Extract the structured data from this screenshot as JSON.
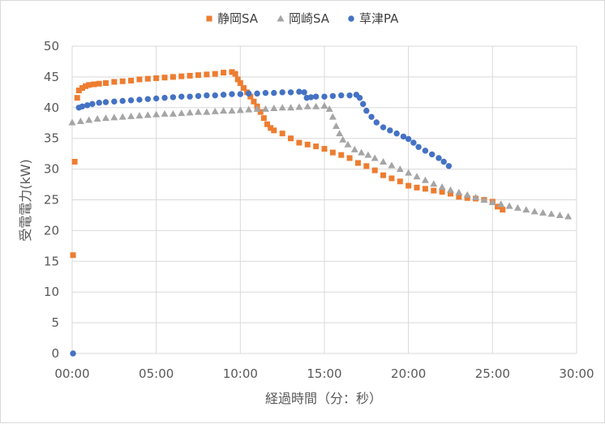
{
  "chart_data": {
    "type": "scatter",
    "title": "",
    "xlabel": "経過時間（分：秒）",
    "ylabel": "受電電力(kW)",
    "x_unit": "minutes",
    "xlim": [
      0,
      30
    ],
    "ylim": [
      0,
      50
    ],
    "x_ticks": [
      0,
      5,
      10,
      15,
      20,
      25,
      30
    ],
    "x_tick_labels": [
      "00:00",
      "05:00",
      "10:00",
      "15:00",
      "20:00",
      "25:00",
      "30:00"
    ],
    "y_ticks": [
      0,
      5,
      10,
      15,
      20,
      25,
      30,
      35,
      40,
      45,
      50
    ],
    "y_tick_labels": [
      "0",
      "5",
      "10",
      "15",
      "20",
      "25",
      "30",
      "35",
      "40",
      "45",
      "50"
    ],
    "grid": true,
    "legend_position": "top",
    "series": [
      {
        "name": "静岡SA",
        "marker": "square",
        "color": "#ED7D31",
        "points": [
          [
            0.05,
            16.0
          ],
          [
            0.15,
            31.2
          ],
          [
            0.3,
            41.6
          ],
          [
            0.4,
            42.8
          ],
          [
            0.6,
            43.2
          ],
          [
            0.8,
            43.5
          ],
          [
            1.0,
            43.7
          ],
          [
            1.3,
            43.8
          ],
          [
            1.6,
            43.9
          ],
          [
            2.0,
            44.0
          ],
          [
            2.5,
            44.2
          ],
          [
            3.0,
            44.3
          ],
          [
            3.5,
            44.4
          ],
          [
            4.0,
            44.6
          ],
          [
            4.5,
            44.7
          ],
          [
            5.0,
            44.8
          ],
          [
            5.5,
            44.9
          ],
          [
            6.0,
            45.0
          ],
          [
            6.5,
            45.1
          ],
          [
            7.0,
            45.2
          ],
          [
            7.5,
            45.3
          ],
          [
            8.0,
            45.4
          ],
          [
            8.5,
            45.5
          ],
          [
            9.0,
            45.7
          ],
          [
            9.5,
            45.8
          ],
          [
            9.7,
            45.5
          ],
          [
            9.85,
            44.6
          ],
          [
            10.0,
            44.0
          ],
          [
            10.2,
            43.2
          ],
          [
            10.4,
            42.5
          ],
          [
            10.6,
            41.8
          ],
          [
            10.8,
            41.0
          ],
          [
            11.0,
            40.2
          ],
          [
            11.2,
            39.3
          ],
          [
            11.4,
            38.3
          ],
          [
            11.6,
            37.3
          ],
          [
            11.8,
            36.7
          ],
          [
            12.0,
            36.3
          ],
          [
            12.5,
            35.8
          ],
          [
            13.0,
            35.0
          ],
          [
            13.5,
            34.3
          ],
          [
            14.0,
            34.0
          ],
          [
            14.5,
            33.7
          ],
          [
            15.0,
            33.3
          ],
          [
            15.5,
            32.7
          ],
          [
            16.0,
            32.3
          ],
          [
            16.5,
            31.8
          ],
          [
            17.0,
            31.0
          ],
          [
            17.5,
            30.5
          ],
          [
            18.0,
            29.8
          ],
          [
            18.5,
            29.0
          ],
          [
            19.0,
            28.5
          ],
          [
            19.5,
            28.0
          ],
          [
            20.0,
            27.3
          ],
          [
            20.5,
            27.0
          ],
          [
            21.0,
            26.8
          ],
          [
            21.5,
            26.5
          ],
          [
            22.0,
            26.3
          ],
          [
            22.5,
            26.0
          ],
          [
            23.0,
            25.5
          ],
          [
            23.5,
            25.3
          ],
          [
            24.0,
            25.2
          ],
          [
            24.5,
            25.0
          ],
          [
            25.0,
            24.7
          ],
          [
            25.3,
            23.9
          ],
          [
            25.6,
            23.4
          ]
        ]
      },
      {
        "name": "岡崎SA",
        "marker": "triangle",
        "color": "#A5A5A5",
        "points": [
          [
            0.0,
            37.6
          ],
          [
            0.5,
            37.8
          ],
          [
            1.0,
            38.0
          ],
          [
            1.5,
            38.2
          ],
          [
            2.0,
            38.3
          ],
          [
            2.5,
            38.4
          ],
          [
            3.0,
            38.5
          ],
          [
            3.5,
            38.6
          ],
          [
            4.0,
            38.7
          ],
          [
            4.5,
            38.8
          ],
          [
            5.0,
            38.9
          ],
          [
            5.5,
            39.0
          ],
          [
            6.0,
            39.0
          ],
          [
            6.5,
            39.1
          ],
          [
            7.0,
            39.2
          ],
          [
            7.5,
            39.3
          ],
          [
            8.0,
            39.3
          ],
          [
            8.5,
            39.4
          ],
          [
            9.0,
            39.5
          ],
          [
            9.5,
            39.5
          ],
          [
            10.0,
            39.6
          ],
          [
            10.5,
            39.7
          ],
          [
            11.0,
            39.8
          ],
          [
            11.5,
            39.8
          ],
          [
            12.0,
            39.9
          ],
          [
            12.5,
            40.0
          ],
          [
            13.0,
            40.0
          ],
          [
            13.5,
            40.1
          ],
          [
            14.0,
            40.2
          ],
          [
            14.5,
            40.2
          ],
          [
            15.0,
            40.3
          ],
          [
            15.3,
            39.8
          ],
          [
            15.5,
            38.5
          ],
          [
            15.7,
            37.0
          ],
          [
            15.9,
            35.8
          ],
          [
            16.1,
            34.8
          ],
          [
            16.4,
            34.0
          ],
          [
            16.8,
            33.2
          ],
          [
            17.2,
            32.7
          ],
          [
            17.6,
            32.3
          ],
          [
            18.0,
            31.8
          ],
          [
            18.5,
            31.2
          ],
          [
            19.0,
            30.6
          ],
          [
            19.5,
            30.0
          ],
          [
            20.0,
            29.4
          ],
          [
            20.5,
            28.8
          ],
          [
            21.0,
            28.2
          ],
          [
            21.5,
            27.6
          ],
          [
            22.0,
            27.1
          ],
          [
            22.5,
            26.6
          ],
          [
            23.0,
            26.2
          ],
          [
            23.5,
            25.8
          ],
          [
            24.0,
            25.4
          ],
          [
            24.5,
            25.0
          ],
          [
            25.0,
            24.6
          ],
          [
            25.5,
            24.3
          ],
          [
            26.0,
            24.0
          ],
          [
            26.5,
            23.7
          ],
          [
            27.0,
            23.4
          ],
          [
            27.5,
            23.1
          ],
          [
            28.0,
            22.9
          ],
          [
            28.5,
            22.7
          ],
          [
            29.0,
            22.5
          ],
          [
            29.5,
            22.3
          ]
        ]
      },
      {
        "name": "草津PA",
        "marker": "circle",
        "color": "#4472C4",
        "points": [
          [
            0.05,
            0.0
          ],
          [
            0.4,
            40.0
          ],
          [
            0.6,
            40.2
          ],
          [
            0.9,
            40.4
          ],
          [
            1.2,
            40.6
          ],
          [
            1.6,
            40.8
          ],
          [
            2.0,
            40.9
          ],
          [
            2.5,
            41.0
          ],
          [
            3.0,
            41.1
          ],
          [
            3.5,
            41.2
          ],
          [
            4.0,
            41.3
          ],
          [
            4.5,
            41.4
          ],
          [
            5.0,
            41.5
          ],
          [
            5.5,
            41.6
          ],
          [
            6.0,
            41.7
          ],
          [
            6.5,
            41.8
          ],
          [
            7.0,
            41.8
          ],
          [
            7.5,
            41.9
          ],
          [
            8.0,
            42.0
          ],
          [
            8.5,
            42.0
          ],
          [
            9.0,
            42.1
          ],
          [
            9.5,
            42.2
          ],
          [
            10.0,
            42.2
          ],
          [
            10.5,
            42.3
          ],
          [
            11.0,
            42.3
          ],
          [
            11.5,
            42.4
          ],
          [
            12.0,
            42.4
          ],
          [
            12.5,
            42.5
          ],
          [
            13.0,
            42.5
          ],
          [
            13.5,
            42.6
          ],
          [
            13.8,
            42.5
          ],
          [
            13.95,
            41.6
          ],
          [
            14.2,
            41.7
          ],
          [
            14.5,
            41.8
          ],
          [
            15.0,
            41.8
          ],
          [
            15.5,
            41.9
          ],
          [
            16.0,
            42.0
          ],
          [
            16.5,
            42.0
          ],
          [
            16.9,
            42.1
          ],
          [
            17.1,
            41.6
          ],
          [
            17.3,
            40.6
          ],
          [
            17.5,
            39.5
          ],
          [
            17.8,
            38.5
          ],
          [
            18.1,
            37.6
          ],
          [
            18.5,
            36.8
          ],
          [
            18.9,
            36.3
          ],
          [
            19.3,
            35.8
          ],
          [
            19.7,
            35.3
          ],
          [
            20.0,
            34.9
          ],
          [
            20.3,
            34.3
          ],
          [
            20.6,
            33.6
          ],
          [
            21.0,
            33.0
          ],
          [
            21.4,
            32.4
          ],
          [
            21.8,
            31.8
          ],
          [
            22.1,
            31.2
          ],
          [
            22.4,
            30.5
          ]
        ]
      }
    ]
  }
}
